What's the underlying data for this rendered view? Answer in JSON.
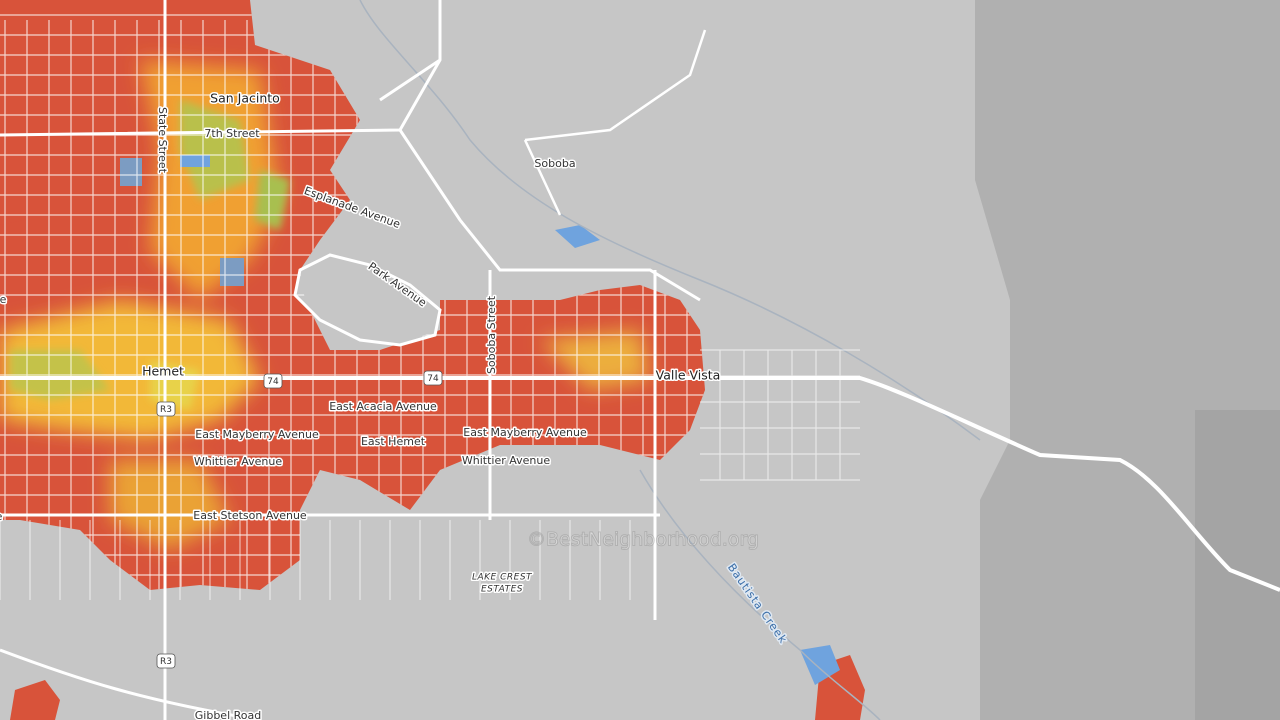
{
  "map": {
    "labels": [
      "San Jacinto",
      "7th Street",
      "State Street",
      "Esplanade Avenue",
      "Park Avenue",
      "Soboba",
      "Soboba Street",
      "Valle Vista",
      "Hemet",
      "East Acacia Avenue",
      "East Mayberry Avenue",
      "East Hemet",
      "East Mayberry Avenue",
      "Whittier Avenue",
      "Whittier Avenue",
      "East Stetson Avenue",
      "LAKE CREST",
      "ESTATES",
      "Bautista Creek",
      "Gibbel Road",
      "Avenue",
      "Avenue"
    ],
    "shields": [
      "74",
      "74",
      "R3",
      "R3"
    ],
    "watermark": "©BestNeighborhood.org"
  }
}
